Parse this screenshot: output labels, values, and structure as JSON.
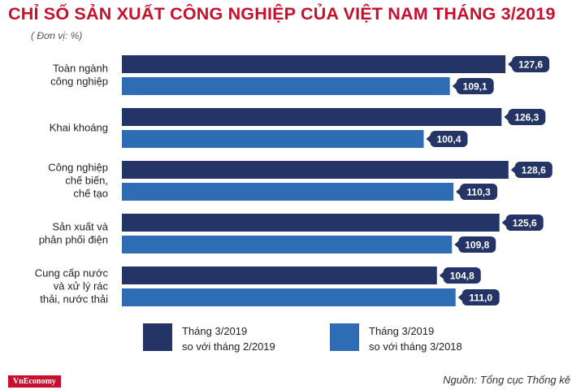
{
  "title": "CHỈ SỐ SẢN XUẤT CÔNG NGHIỆP CỦA VIỆT NAM THÁNG 3/2019",
  "unit": "( Đơn vị: %)",
  "source": "Nguồn: Tổng cục Thống kê",
  "brand": "VnEconomy",
  "colors": {
    "title": "#c8102e",
    "series1": "#243466",
    "series2": "#2e6db4"
  },
  "legend": [
    {
      "line1": "Tháng 3/2019",
      "line2": "so với tháng 2/2019"
    },
    {
      "line1": "Tháng 3/2019",
      "line2": "so với tháng 3/2018"
    }
  ],
  "chart_data": {
    "type": "bar",
    "orientation": "horizontal",
    "title": "CHỈ SỐ SẢN XUẤT CÔNG NGHIỆP CỦA VIỆT NAM THÁNG 3/2019",
    "categories": [
      [
        "Toàn ngành",
        "công nghiệp"
      ],
      [
        "Khai khoáng"
      ],
      [
        "Công nghiệp",
        "chế biến,",
        "chế tạo"
      ],
      [
        "Sản xuất và",
        "phân phối điện"
      ],
      [
        "Cung cấp nước",
        "và xử lý rác",
        "thải, nước thải"
      ]
    ],
    "series": [
      {
        "name": "Tháng 3/2019 so với tháng 2/2019",
        "values": [
          "127,6",
          "126,3",
          "128,6",
          "125,6",
          "104,8"
        ]
      },
      {
        "name": "Tháng 3/2019 so với tháng 3/2018",
        "values": [
          "109,1",
          "100,4",
          "110,3",
          "109,8",
          "111,0"
        ]
      }
    ],
    "grid": false,
    "legend_position": "bottom"
  }
}
